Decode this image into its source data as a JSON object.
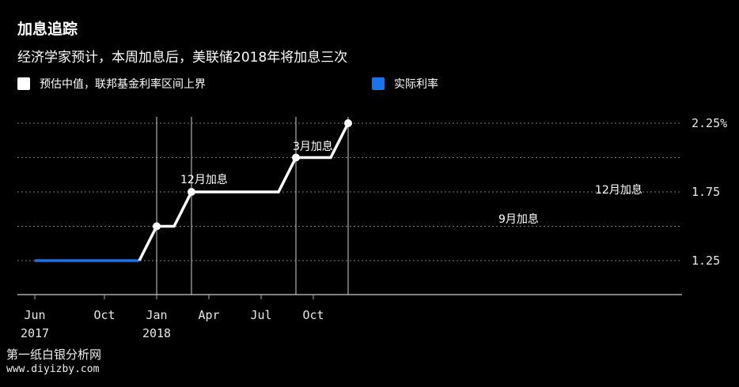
{
  "title": "加息追踪",
  "subtitle": "经济学家预计，本周加息后，美联储2018年将加息三次",
  "legend": [
    {
      "label": "预估中值，联邦基金利率区间上界",
      "color": "#ffffff"
    },
    {
      "label": "实际利率",
      "color": "#1a73e8"
    }
  ],
  "watermark": {
    "line1": "第一纸白银分析网",
    "line2": "www.diyizby.com"
  },
  "chart_data": {
    "type": "line",
    "x_ticks": [
      {
        "x": "2017-06",
        "label": "Jun",
        "sublabel": "2017"
      },
      {
        "x": "2017-10",
        "label": "Oct",
        "sublabel": ""
      },
      {
        "x": "2018-01",
        "label": "Jan",
        "sublabel": "2018"
      },
      {
        "x": "2018-04",
        "label": "Apr",
        "sublabel": ""
      },
      {
        "x": "2018-07",
        "label": "Jul",
        "sublabel": ""
      },
      {
        "x": "2018-10",
        "label": "Oct",
        "sublabel": ""
      }
    ],
    "y_ticks": [
      {
        "value": 1.25,
        "label": "1.25"
      },
      {
        "value": 1.75,
        "label": "1.75"
      },
      {
        "value": 2.25,
        "label": "2.25%"
      }
    ],
    "y_gridlines": [
      1.25,
      1.5,
      1.75,
      2.0,
      2.25
    ],
    "ylim": [
      1.0,
      2.25
    ],
    "series": [
      {
        "name": "实际利率",
        "color": "#1a73e8",
        "points": [
          {
            "x": "2017-06",
            "y": 1.25
          },
          {
            "x": "2017-12",
            "y": 1.25
          }
        ]
      },
      {
        "name": "预估中值，联邦基金利率区间上界",
        "color": "#ffffff",
        "points": [
          {
            "x": "2017-12",
            "y": 1.25
          },
          {
            "x": "2018-01",
            "y": 1.5
          },
          {
            "x": "2018-02",
            "y": 1.5
          },
          {
            "x": "2018-03",
            "y": 1.75
          },
          {
            "x": "2018-08",
            "y": 1.75
          },
          {
            "x": "2018-09",
            "y": 2.0
          },
          {
            "x": "2018-11",
            "y": 2.0
          },
          {
            "x": "2018-12",
            "y": 2.25
          }
        ]
      }
    ],
    "hike_markers": [
      {
        "x": "2018-01",
        "y": 1.5,
        "label": "12月加息"
      },
      {
        "x": "2018-03",
        "y": 1.75,
        "label": "3月加息"
      },
      {
        "x": "2018-09",
        "y": 2.0,
        "label": "9月加息"
      },
      {
        "x": "2018-12",
        "y": 2.25,
        "label": "12月加息"
      }
    ]
  }
}
